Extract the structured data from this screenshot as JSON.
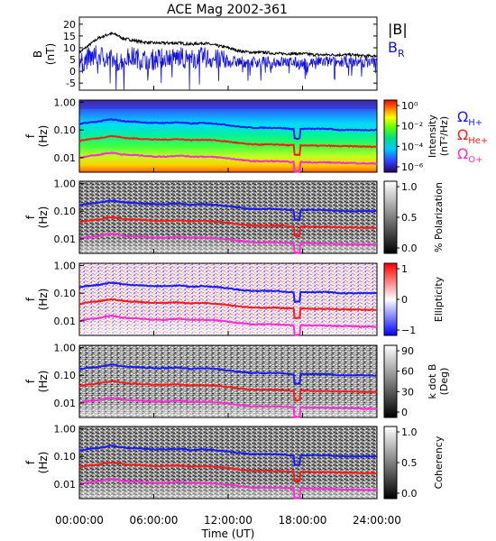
{
  "title": "ACE Mag 2002-361",
  "colors": {
    "total_field": "#000000",
    "radial_field": "#1010e0",
    "h_plus": "#1a1aff",
    "he_plus": "#ff1a1a",
    "o_plus": "#ff2bd6",
    "axis": "#000000"
  },
  "chart_data": [
    {
      "type": "line",
      "panel": "field",
      "ylabel": "B\n(nT)",
      "ylim": [
        -8,
        23
      ],
      "yticks": [
        -5,
        0,
        5,
        10,
        15,
        20
      ],
      "xlim": [
        0,
        24
      ],
      "legend_placement": "right",
      "series": [
        {
          "name": "|B|",
          "color": "#000000",
          "x": [
            0,
            0.5,
            1,
            1.5,
            2,
            2.5,
            3,
            3.5,
            4,
            4.5,
            5,
            6,
            7,
            8,
            9,
            10,
            11,
            12,
            13,
            14,
            15,
            16,
            17,
            18,
            19,
            20,
            21,
            22,
            23,
            24
          ],
          "y": [
            8,
            10,
            12,
            14,
            15,
            16,
            15.5,
            14,
            13.5,
            13,
            12.5,
            12,
            12,
            12,
            11.5,
            12,
            11,
            10,
            8.5,
            8,
            8,
            7.5,
            7.5,
            7.5,
            7,
            7,
            7,
            7,
            6.5,
            6.5
          ]
        },
        {
          "name": "B",
          "sub": "R",
          "color": "#1010e0",
          "x": [
            0,
            0.5,
            1,
            1.5,
            2,
            2.5,
            3,
            3.5,
            4,
            4.5,
            5,
            6,
            7,
            8,
            9,
            10,
            11,
            12,
            13,
            14,
            15,
            16,
            17,
            18,
            19,
            20,
            21,
            22,
            23,
            24
          ],
          "y": [
            3,
            5,
            6,
            7,
            6,
            5,
            4,
            5,
            6,
            6,
            5,
            5,
            6,
            6,
            5,
            6,
            5,
            4,
            4,
            4,
            4,
            4,
            4,
            3,
            4,
            4,
            4,
            4,
            4,
            4
          ]
        }
      ]
    },
    {
      "type": "heatmap",
      "panel": "intensity",
      "ylabel": "f\n(Hz)",
      "ylim_log": [
        0.003,
        1.2
      ],
      "yticks": [
        "1.00",
        "0.10",
        "0.01"
      ],
      "colorbar": {
        "label": "Intensity\n(nT²/Hz)",
        "scale": "log",
        "ticks": [
          "10⁰",
          "10⁻²",
          "10⁻⁴",
          "10⁻⁶"
        ],
        "palette": "rainbow"
      }
    },
    {
      "type": "heatmap",
      "panel": "polarization",
      "ylabel": "f\n(Hz)",
      "yticks": [
        "1.00",
        "0.10",
        "0.01"
      ],
      "colorbar": {
        "label": "% Polarization",
        "ticks": [
          "1.0",
          "0.5",
          "0.0"
        ],
        "palette": "gray"
      }
    },
    {
      "type": "heatmap",
      "panel": "ellipticity",
      "ylabel": "f\n(Hz)",
      "yticks": [
        "1.00",
        "0.10",
        "0.01"
      ],
      "colorbar": {
        "label": "Ellipticity",
        "ticks": [
          "1",
          "0",
          "−1"
        ],
        "palette": "bwr"
      }
    },
    {
      "type": "heatmap",
      "panel": "kdotb",
      "ylabel": "f\n(Hz)",
      "yticks": [
        "1.00",
        "0.10",
        "0.01"
      ],
      "colorbar": {
        "label": "k dot B\n(Deg)",
        "ticks": [
          "90",
          "60",
          "30",
          "0"
        ],
        "palette": "gray"
      }
    },
    {
      "type": "heatmap",
      "panel": "coherency",
      "ylabel": "f\n(Hz)",
      "yticks": [
        "1.00",
        "0.10",
        "0.01"
      ],
      "colorbar": {
        "label": "Coherency",
        "ticks": [
          "1.0",
          "0.5",
          "0.0"
        ],
        "palette": "gray"
      }
    }
  ],
  "gyrofrequencies": {
    "x": [
      0,
      0.5,
      1,
      1.5,
      2,
      2.5,
      3,
      3.5,
      4,
      4.5,
      5,
      6,
      7,
      8,
      9,
      10,
      11,
      12,
      13,
      14,
      15,
      16,
      17,
      18,
      19,
      20,
      21,
      22,
      23,
      24
    ],
    "h_plus": [
      0.16,
      0.18,
      0.19,
      0.2,
      0.22,
      0.24,
      0.23,
      0.21,
      0.2,
      0.2,
      0.19,
      0.18,
      0.18,
      0.19,
      0.17,
      0.18,
      0.17,
      0.15,
      0.13,
      0.12,
      0.12,
      0.12,
      0.11,
      0.11,
      0.11,
      0.11,
      0.1,
      0.1,
      0.1,
      0.1
    ],
    "he_plus": [
      0.04,
      0.045,
      0.048,
      0.05,
      0.055,
      0.06,
      0.058,
      0.053,
      0.05,
      0.05,
      0.048,
      0.045,
      0.045,
      0.047,
      0.043,
      0.045,
      0.042,
      0.038,
      0.033,
      0.03,
      0.03,
      0.03,
      0.028,
      0.028,
      0.027,
      0.027,
      0.026,
      0.026,
      0.025,
      0.025
    ],
    "o_plus": [
      0.01,
      0.011,
      0.012,
      0.0125,
      0.014,
      0.015,
      0.0145,
      0.013,
      0.0125,
      0.0125,
      0.012,
      0.011,
      0.011,
      0.012,
      0.011,
      0.011,
      0.0105,
      0.0095,
      0.0083,
      0.0075,
      0.0075,
      0.0075,
      0.007,
      0.007,
      0.0068,
      0.0068,
      0.0065,
      0.0065,
      0.0062,
      0.0062
    ]
  },
  "legend": {
    "total_field": "|B|",
    "radial_field": "B",
    "radial_sub": "R",
    "omega": "Ω",
    "h_sub": "H+",
    "he_sub": "He+",
    "o_sub": "O+"
  },
  "xaxis": {
    "label": "Time (UT)",
    "ticks": [
      "00:00:00",
      "06:00:00",
      "12:00:00",
      "18:00:00",
      "24:00:00"
    ],
    "tick_values": [
      0,
      6,
      12,
      18,
      24
    ]
  }
}
